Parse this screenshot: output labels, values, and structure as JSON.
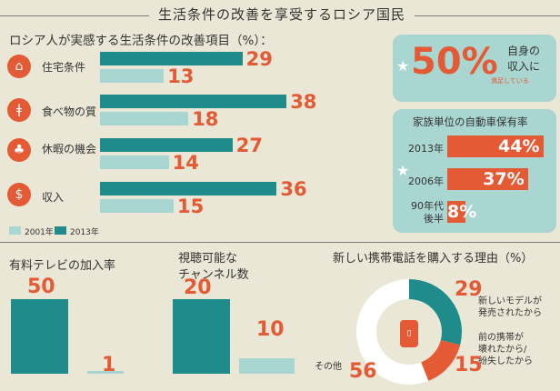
{
  "header": {
    "title": "生活条件の改善を享受するロシア国民",
    "subtitle": "ロシア人が実感する生活条件の改善項目（%）："
  },
  "chart_data": [
    {
      "type": "bar",
      "title": "ロシア人が実感する生活条件の改善項目（%）：",
      "categories": [
        "住宅条件",
        "食べ物の質",
        "休暇の機会",
        "収入"
      ],
      "series": [
        {
          "name": "2013年",
          "values": [
            29,
            38,
            27,
            36
          ]
        },
        {
          "name": "2001年",
          "values": [
            13,
            18,
            14,
            15
          ]
        }
      ],
      "xlim": [
        0,
        40
      ]
    },
    {
      "type": "bar",
      "title": "家族単位の自動車保有率",
      "categories": [
        "2013年",
        "2006年",
        "90年代後半"
      ],
      "values": [
        44,
        37,
        8
      ],
      "value_labels": [
        "44%",
        "37%",
        "8%"
      ],
      "xlim": [
        0,
        44
      ]
    },
    {
      "type": "bar",
      "title": "有料テレビの加入率",
      "values": [
        50,
        1
      ],
      "value_labels": [
        "50",
        "1"
      ],
      "ylim": [
        0,
        50
      ]
    },
    {
      "type": "bar",
      "title": "視聴可能なチャンネル数",
      "values": [
        20,
        10
      ],
      "value_labels": [
        "20",
        "10"
      ],
      "ylim": [
        0,
        20
      ]
    },
    {
      "type": "pie",
      "title": "新しい携帯電話を購入する理由（%）",
      "values": [
        29,
        15,
        56
      ],
      "value_labels": [
        "29",
        "15",
        "56"
      ],
      "labels": [
        "新しいモデルが発売されたから",
        "前の携帯が壊れたから/紛失したから",
        "その他"
      ]
    }
  ],
  "legend": {
    "y2001": "2001年",
    "y2013": "2013年"
  },
  "income": {
    "value": "50%",
    "line1": "自身の",
    "line2": "収入に",
    "line3": "満足している"
  },
  "cars": {
    "row3_label_line1": "90年代",
    "row3_label_line2": "後半"
  },
  "pie_labels": {
    "l29_line1": "新しいモデルが",
    "l29_line2": "発売されたから",
    "l15_line1": "前の携帯が",
    "l15_line2": "壊れたから/",
    "l15_line3": "紛失したから"
  },
  "tv_titles": {
    "channels_line1": "視聴可能な",
    "channels_line2": "チャンネル数"
  },
  "colors": {
    "teal": "#1f8b8b",
    "light_teal": "#a9d6d1",
    "orange": "#e45a35",
    "bg": "#ebe7d6"
  },
  "icons": [
    "house-icon",
    "fork-knife-icon",
    "palm-tree-icon",
    "dollar-icon",
    "phone-icon",
    "star-icon"
  ]
}
